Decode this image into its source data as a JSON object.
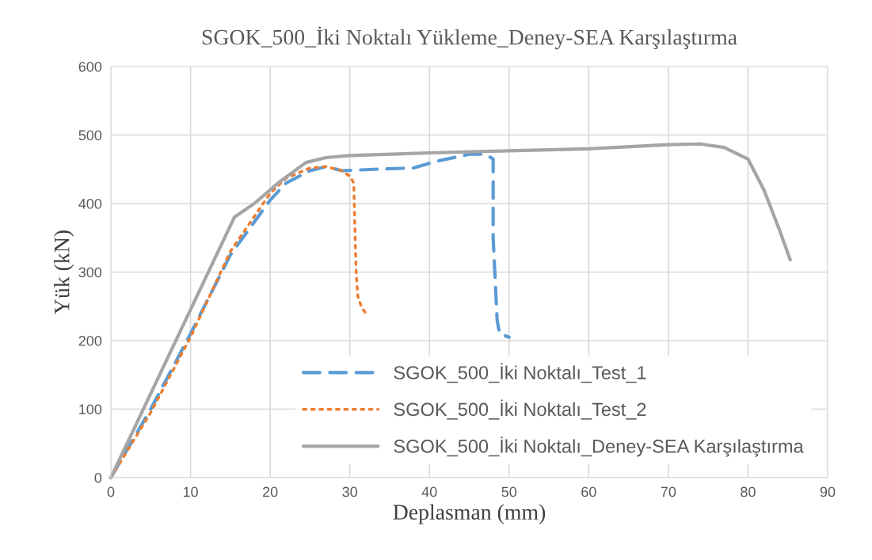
{
  "chart_data": {
    "type": "line",
    "title": "SGOK_500_İki Noktalı Yükleme_Deney-SEA Karşılaştırma",
    "xlabel": "Deplasman (mm)",
    "ylabel": "Yük (kN)",
    "xlim": [
      0,
      90
    ],
    "xticks": [
      0,
      10,
      20,
      30,
      40,
      50,
      60,
      70,
      80,
      90
    ],
    "ylim": [
      0,
      600
    ],
    "yticks": [
      0,
      100,
      200,
      300,
      400,
      500,
      600
    ],
    "grid": true,
    "legend": "bottom right",
    "series": [
      {
        "name": "SGOK_500_İki Noktalı_Test_1",
        "color": "#5b9bd5",
        "line_style": "dashed",
        "x": [
          0,
          5,
          10,
          15,
          20,
          22,
          25,
          27,
          29,
          33,
          38,
          41,
          45,
          47,
          48,
          48,
          48.5,
          48.8,
          50
        ],
        "values": [
          0,
          100,
          210,
          325,
          405,
          430,
          448,
          454,
          448,
          450,
          452,
          462,
          472,
          472,
          465,
          350,
          230,
          210,
          205
        ]
      },
      {
        "name": "SGOK_500_İki Noktalı_Test_2",
        "color": "#ed7d31",
        "line_style": "dotted",
        "x": [
          0,
          5,
          10,
          15,
          20,
          22,
          25,
          27,
          29,
          30,
          30.5,
          30.6,
          30.8,
          31,
          31.5,
          32
        ],
        "values": [
          0,
          95,
          205,
          330,
          415,
          437,
          452,
          454,
          448,
          440,
          430,
          380,
          300,
          265,
          248,
          240
        ]
      },
      {
        "name": "SGOK_500_İki Noktalı_Deney-SEA Karşılaştırma",
        "color": "#a5a5a5",
        "line_style": "solid",
        "x": [
          0,
          15.5,
          18,
          21,
          24.5,
          27,
          30,
          40,
          50,
          60,
          70,
          74,
          77,
          80,
          82,
          84,
          85.3
        ],
        "values": [
          0,
          380,
          400,
          430,
          460,
          467,
          470,
          474,
          477,
          480,
          486,
          487,
          482,
          465,
          420,
          360,
          318
        ]
      }
    ]
  }
}
